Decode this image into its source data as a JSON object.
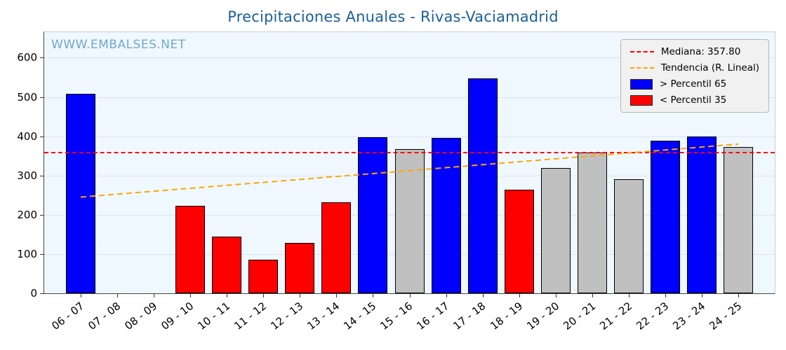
{
  "watermark": "WWW.EMBALSES.NET",
  "legend": {
    "median_label": "Mediana: 357.80",
    "trend_label": "Tendencia (R. Lineal)",
    "above_label": "> Percentil 65",
    "below_label": "< Percentil 35"
  },
  "colors": {
    "title": "#1a6099",
    "watermark": "#6fa8d0",
    "above": "#0000ff",
    "below": "#ff0000",
    "normal": "#c0c0c0",
    "median_line": "#ff0000",
    "trend_line": "#ffa500"
  },
  "chart_data": {
    "type": "bar",
    "title": "Precipitaciones Anuales - Rivas-Vaciamadrid",
    "categories": [
      "06 - 07",
      "07 - 08",
      "08 - 09",
      "09 - 10",
      "10 - 11",
      "11 - 12",
      "12 - 13",
      "13 - 14",
      "14 - 15",
      "15 - 16",
      "16 - 17",
      "17 - 18",
      "18 - 19",
      "19 - 20",
      "20 - 21",
      "21 - 22",
      "22 - 23",
      "23 - 24",
      "24 - 25"
    ],
    "values": [
      509,
      0,
      0,
      222,
      144,
      85,
      128,
      231,
      398,
      368,
      395,
      547,
      263,
      320,
      358,
      291,
      388,
      399,
      373
    ],
    "bar_colors": [
      "above",
      "none",
      "none",
      "below",
      "below",
      "below",
      "below",
      "below",
      "above",
      "normal",
      "above",
      "above",
      "below",
      "normal",
      "normal",
      "normal",
      "above",
      "above",
      "normal"
    ],
    "median": 357.8,
    "trend": {
      "start": 245,
      "end": 380
    },
    "xlabel": "",
    "ylabel": "",
    "ylim": [
      0,
      665
    ],
    "yticks": [
      0,
      100,
      200,
      300,
      400,
      500,
      600
    ],
    "grid": "horizontal",
    "legend_position": "top-right"
  }
}
